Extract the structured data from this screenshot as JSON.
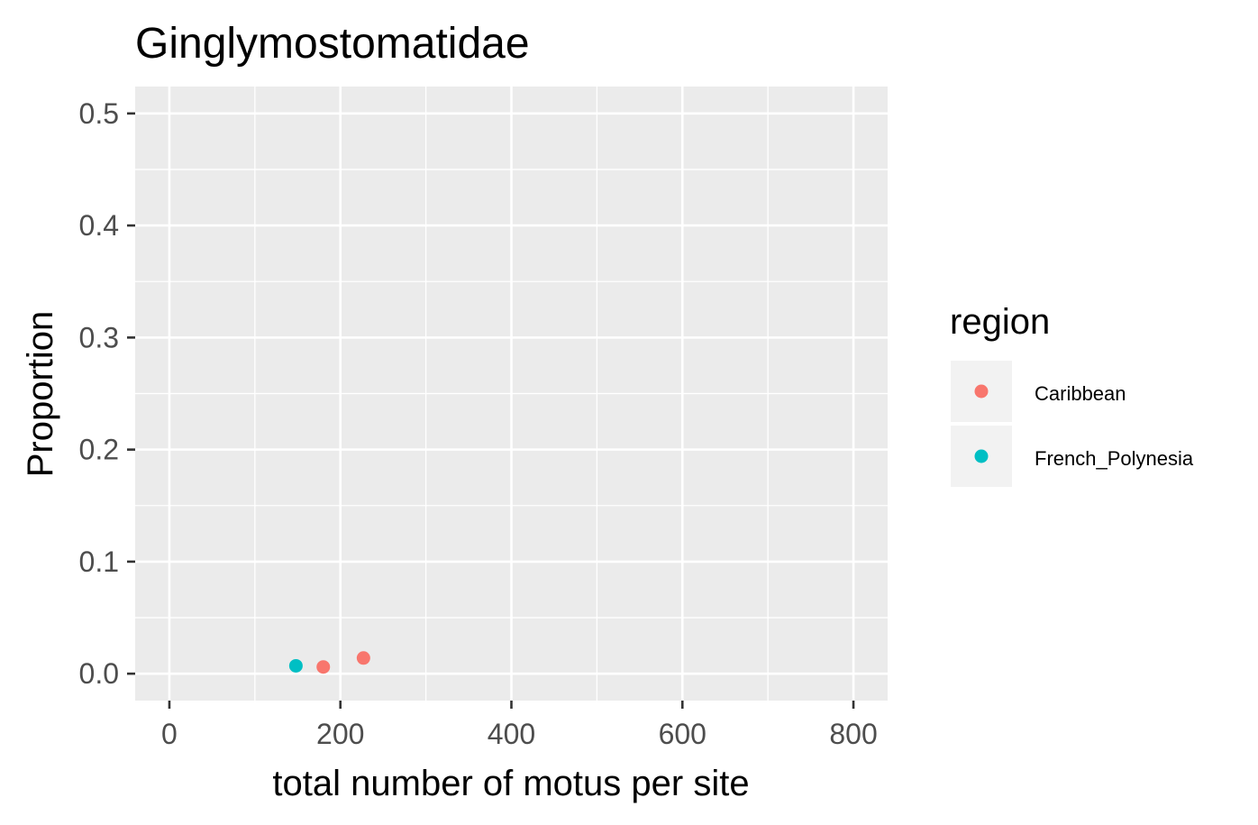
{
  "chart_data": {
    "type": "scatter",
    "title": "Ginglymostomatidae",
    "xlabel": "total number of motus per site",
    "ylabel": "Proportion",
    "xlim": [
      -40,
      840
    ],
    "ylim": [
      -0.024,
      0.524
    ],
    "x_ticks": [
      0,
      200,
      400,
      600,
      800
    ],
    "x_tick_labels": [
      "0",
      "200",
      "400",
      "600",
      "800"
    ],
    "y_ticks": [
      0.0,
      0.1,
      0.2,
      0.3,
      0.4,
      0.5
    ],
    "y_tick_labels": [
      "0.0",
      "0.1",
      "0.2",
      "0.3",
      "0.4",
      "0.5"
    ],
    "grid": true,
    "legend": {
      "title": "region",
      "position": "right",
      "entries": [
        {
          "label": "Caribbean",
          "color": "#F8766D"
        },
        {
          "label": "French_Polynesia",
          "color": "#00BFC4"
        }
      ]
    },
    "series": [
      {
        "name": "Caribbean",
        "color": "#F8766D",
        "points": [
          {
            "x": 180,
            "y": 0.006
          },
          {
            "x": 227,
            "y": 0.014
          }
        ]
      },
      {
        "name": "French_Polynesia",
        "color": "#00BFC4",
        "points": [
          {
            "x": 148,
            "y": 0.007
          }
        ]
      }
    ]
  }
}
